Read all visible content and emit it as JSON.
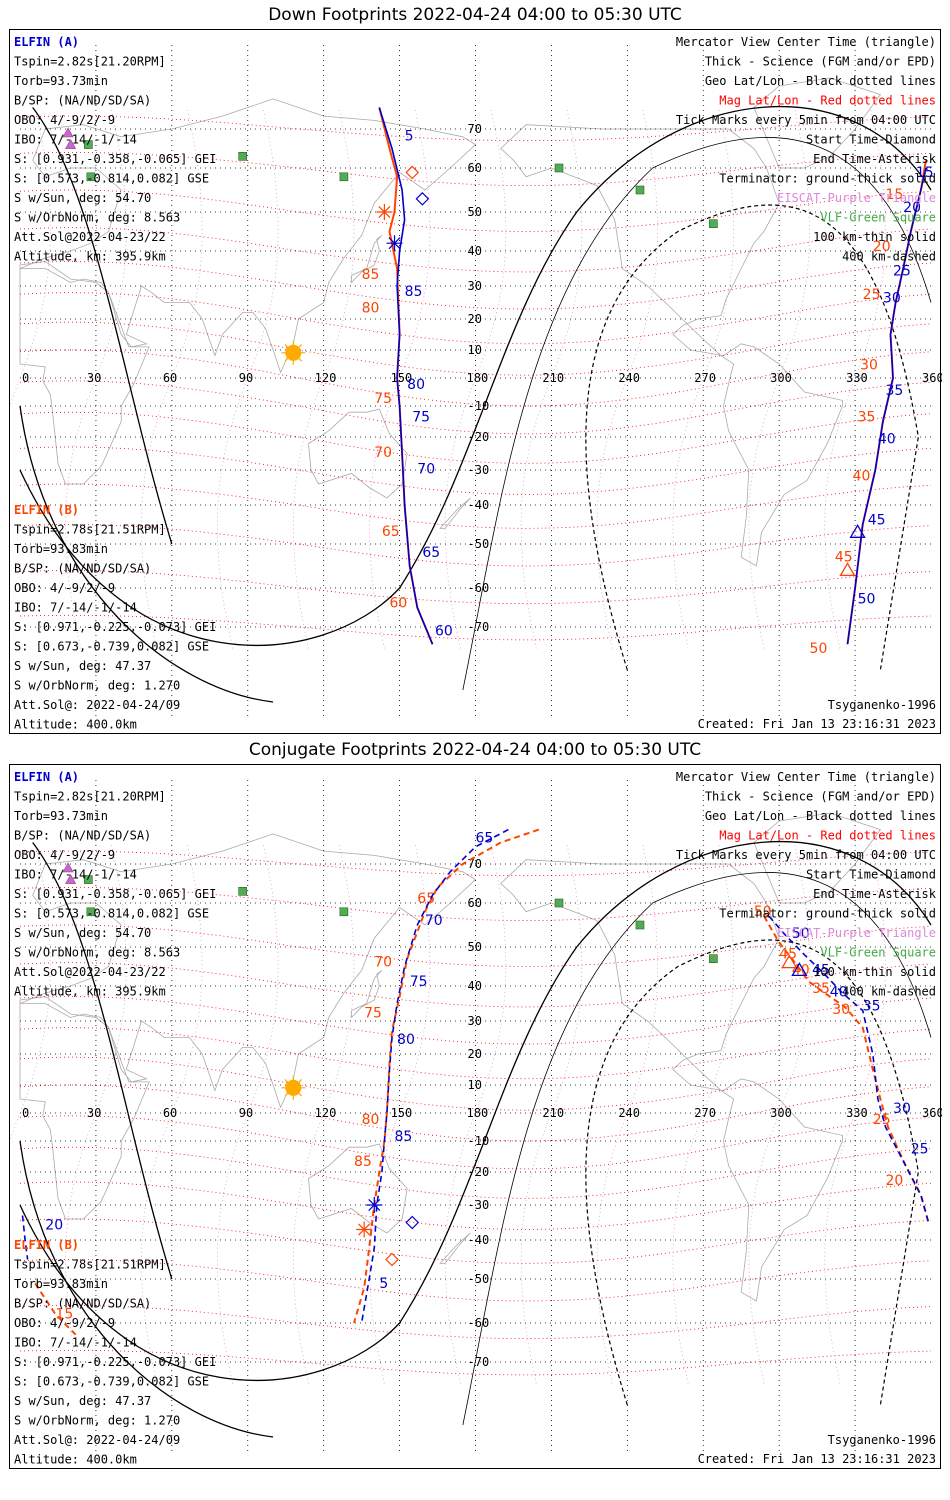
{
  "panels": [
    {
      "id": "down",
      "title": "Down Footprints 2022-04-24 04:00 to 05:30 UTC",
      "info_a": {
        "name": "ELFIN (A)",
        "lines": [
          "Tspin=2.82s[21.20RPM]",
          "Torb=93.73min",
          "B/SP: (NA/ND/SD/SA)",
          "OBO: 4/-9/2/-9",
          "IBO: 7/-14/-1/-14",
          "S: [0.931,-0.358,-0.065] GEI",
          "S: [0.573,-0.814,0.082] GSE",
          "S w/Sun, deg: 54.70",
          "S w/OrbNorm, deg: 8.563",
          "Att.Sol@2022-04-23/22",
          "Altitude, km: 395.9km"
        ]
      },
      "info_b": {
        "name": "ELFIN (B)",
        "lines": [
          "Tspin=2.78s[21.51RPM]",
          "Torb=93.83min",
          "B/SP: (NA/ND/SD/SA)",
          "OBO: 4/-9/2/-9",
          "IBO: 7/-14/-1/-14",
          "S: [0.971,-0.225,-0.073] GEI",
          "S: [0.673,-0.739,0.082] GSE",
          "S w/Sun, deg: 47.37",
          "S w/OrbNorm, deg: 1.270",
          "Att.Sol@: 2022-04-24/09",
          "Altitude: 400.0km"
        ]
      },
      "legend": [
        {
          "text": "Mercator View Center Time (triangle)",
          "color": "#000000"
        },
        {
          "text": "Thick - Science (FGM and/or EPD)",
          "color": "#000000"
        },
        {
          "text": "Geo Lat/Lon - Black dotted lines",
          "color": "#000000"
        },
        {
          "text": "Mag Lat/Lon - Red dotted lines",
          "color": "#ff0000"
        },
        {
          "text": "Tick Marks every 5min from 04:00 UTC",
          "color": "#000000"
        },
        {
          "text": "Start Time-Diamond",
          "color": "#000000"
        },
        {
          "text": "End Time-Asterisk",
          "color": "#000000"
        },
        {
          "text": "Terminator: ground-thick solid",
          "color": "#000000"
        },
        {
          "text": "EISCAT-Purple Triangle",
          "color": "#dd88dd"
        },
        {
          "text": "VLF-Green Square",
          "color": "#44aa44"
        },
        {
          "text": "100 km-thin solid",
          "color": "#000000"
        },
        {
          "text": "400 km-dashed",
          "color": "#000000"
        }
      ],
      "footer_left": "",
      "footer_right_1": "Tsyganenko-1996",
      "footer_right_2": "Created: Fri Jan 13 23:16:31 2023",
      "track_a": {
        "color": "#0000cc",
        "points": [
          [
            142,
            75
          ],
          [
            147,
            65
          ],
          [
            151,
            55
          ],
          [
            152,
            48
          ],
          [
            150,
            40
          ],
          [
            149,
            30
          ],
          [
            150,
            15
          ],
          [
            149,
            0
          ],
          [
            150,
            -10
          ],
          [
            151,
            -25
          ],
          [
            152,
            -40
          ],
          [
            154,
            -55
          ],
          [
            157,
            -65
          ],
          [
            163,
            -74
          ]
        ],
        "labels": [
          {
            "t": "5",
            "lon": 152,
            "lat": 67
          },
          {
            "t": "85",
            "lon": 152,
            "lat": 27
          },
          {
            "t": "80",
            "lon": 153,
            "lat": -4
          },
          {
            "t": "75",
            "lon": 155,
            "lat": -15
          },
          {
            "t": "70",
            "lon": 157,
            "lat": -31
          },
          {
            "t": "65",
            "lon": 159,
            "lat": -53
          },
          {
            "t": "60",
            "lon": 164,
            "lat": -72
          }
        ],
        "start": [
          159,
          53
        ],
        "end": [
          148,
          42
        ]
      },
      "track_b": {
        "color": "#ff4400",
        "points": [
          [
            142,
            75
          ],
          [
            146,
            65
          ],
          [
            149,
            58
          ],
          [
            148,
            50
          ],
          [
            146,
            45
          ],
          [
            149,
            35
          ],
          [
            150,
            15
          ],
          [
            149,
            0
          ],
          [
            150,
            -10
          ],
          [
            151,
            -25
          ],
          [
            152,
            -40
          ],
          [
            154,
            -55
          ],
          [
            157,
            -65
          ],
          [
            163,
            -74
          ]
        ],
        "labels": [
          {
            "t": "85",
            "lon": 135,
            "lat": 32
          },
          {
            "t": "80",
            "lon": 135,
            "lat": 22
          },
          {
            "t": "75",
            "lon": 140,
            "lat": -9
          },
          {
            "t": "70",
            "lon": 140,
            "lat": -26
          },
          {
            "t": "65",
            "lon": 143,
            "lat": -48
          },
          {
            "t": "60",
            "lon": 146,
            "lat": -65
          }
        ],
        "start": [
          155,
          59
        ],
        "end": [
          144,
          50
        ]
      },
      "track_a2": {
        "color": "#0000cc",
        "points": [
          [
            358,
            60
          ],
          [
            356,
            55
          ],
          [
            352,
            45
          ],
          [
            349,
            35
          ],
          [
            346,
            25
          ],
          [
            344,
            15
          ],
          [
            345,
            0
          ],
          [
            341,
            -15
          ],
          [
            338,
            -30
          ],
          [
            333,
            -45
          ],
          [
            330,
            -60
          ],
          [
            327,
            -74
          ]
        ],
        "labels": [
          {
            "t": "15",
            "lon": 354,
            "lat": 58
          },
          {
            "t": "20",
            "lon": 349,
            "lat": 50
          },
          {
            "t": "25",
            "lon": 345,
            "lat": 33
          },
          {
            "t": "30",
            "lon": 341,
            "lat": 25
          },
          {
            "t": "35",
            "lon": 342,
            "lat": -6
          },
          {
            "t": "40",
            "lon": 339,
            "lat": -22
          },
          {
            "t": "45",
            "lon": 335,
            "lat": -45
          },
          {
            "t": "50",
            "lon": 331,
            "lat": -64
          }
        ],
        "triangle": [
          331,
          -47
        ]
      },
      "track_b2": {
        "color": "#ff4400",
        "points": [
          [
            358,
            62
          ],
          [
            356,
            55
          ],
          [
            352,
            45
          ],
          [
            349,
            35
          ],
          [
            346,
            25
          ],
          [
            344,
            15
          ],
          [
            345,
            0
          ],
          [
            341,
            -15
          ],
          [
            338,
            -30
          ],
          [
            333,
            -45
          ],
          [
            330,
            -60
          ],
          [
            327,
            -74
          ]
        ],
        "labels": [
          {
            "t": "15",
            "lon": 342,
            "lat": 53
          },
          {
            "t": "20",
            "lon": 337,
            "lat": 40
          },
          {
            "t": "25",
            "lon": 333,
            "lat": 26
          },
          {
            "t": "30",
            "lon": 332,
            "lat": 3
          },
          {
            "t": "35",
            "lon": 331,
            "lat": -15
          },
          {
            "t": "40",
            "lon": 329,
            "lat": -33
          },
          {
            "t": "45",
            "lon": 322,
            "lat": -54
          },
          {
            "t": "50",
            "lon": 312,
            "lat": -76
          }
        ],
        "triangle": [
          327,
          -56
        ]
      }
    },
    {
      "id": "conjugate",
      "title": "Conjugate Footprints 2022-04-24 04:00 to 05:30 UTC",
      "info_a": {
        "name": "ELFIN (A)",
        "lines": [
          "Tspin=2.82s[21.20RPM]",
          "Torb=93.73min",
          "B/SP: (NA/ND/SD/SA)",
          "OBO: 4/-9/2/-9",
          "IBO: 7/-14/-1/-14",
          "S: [0.931,-0.358,-0.065] GEI",
          "S: [0.573,-0.814,0.082] GSE",
          "S w/Sun, deg: 54.70",
          "S w/OrbNorm, deg: 8.563",
          "Att.Sol@2022-04-23/22",
          "Altitude, km: 395.9km"
        ]
      },
      "info_b": {
        "name": "ELFIN (B)",
        "lines": [
          "Tspin=2.78s[21.51RPM]",
          "Torb=93.83min",
          "B/SP: (NA/ND/SD/SA)",
          "OBO: 4/-9/2/-9",
          "IBO: 7/-14/-1/-14",
          "S: [0.971,-0.225,-0.073] GEI",
          "S: [0.673,-0.739,0.082] GSE",
          "S w/Sun, deg: 47.37",
          "S w/OrbNorm, deg: 1.270",
          "Att.Sol@: 2022-04-24/09",
          "Altitude: 400.0km"
        ]
      },
      "legend": [
        {
          "text": "Mercator View Center Time (triangle)",
          "color": "#000000"
        },
        {
          "text": "Thick - Science (FGM and/or EPD)",
          "color": "#000000"
        },
        {
          "text": "Geo Lat/Lon - Black dotted lines",
          "color": "#000000"
        },
        {
          "text": "Mag Lat/Lon - Red dotted lines",
          "color": "#ff0000"
        },
        {
          "text": "Tick Marks every 5min from 04:00 UTC",
          "color": "#000000"
        },
        {
          "text": "Start Time-Diamond",
          "color": "#000000"
        },
        {
          "text": "End Time-Asterisk",
          "color": "#000000"
        },
        {
          "text": "Terminator: ground-thick solid",
          "color": "#000000"
        },
        {
          "text": "EISCAT-Purple Triangle",
          "color": "#dd88dd"
        },
        {
          "text": "VLF-Green Square",
          "color": "#44aa44"
        },
        {
          "text": "100 km-thin solid",
          "color": "#000000"
        },
        {
          "text": "400 km-dashed",
          "color": "#000000"
        }
      ],
      "footer_right_1": "Tsyganenko-1996",
      "footer_right_2": "Created: Fri Jan 13 23:16:31 2023",
      "track_a": {
        "color": "#0000cc",
        "points": [
          [
            193,
            78
          ],
          [
            180,
            74
          ],
          [
            170,
            68
          ],
          [
            163,
            62
          ],
          [
            157,
            55
          ],
          [
            152,
            45
          ],
          [
            149,
            35
          ],
          [
            147,
            25
          ],
          [
            146,
            15
          ],
          [
            145,
            0
          ],
          [
            144,
            -10
          ],
          [
            143,
            -20
          ],
          [
            141,
            -30
          ],
          [
            140,
            -42
          ],
          [
            138,
            -50
          ],
          [
            135,
            -60
          ]
        ],
        "labels": [
          {
            "t": "65",
            "lon": 180,
            "lat": 75
          },
          {
            "t": "70",
            "lon": 160,
            "lat": 55
          },
          {
            "t": "75",
            "lon": 154,
            "lat": 40
          },
          {
            "t": "80",
            "lon": 149,
            "lat": 23
          },
          {
            "t": "85",
            "lon": 148,
            "lat": -10
          },
          {
            "t": "5",
            "lon": 142,
            "lat": -52
          }
        ],
        "start": [
          155,
          -35
        ],
        "end": [
          140,
          -30
        ]
      },
      "track_b": {
        "color": "#ff4400",
        "points": [
          [
            205,
            78
          ],
          [
            190,
            75
          ],
          [
            175,
            70
          ],
          [
            165,
            64
          ],
          [
            160,
            58
          ],
          [
            153,
            47
          ],
          [
            150,
            37
          ],
          [
            147,
            27
          ],
          [
            146,
            17
          ],
          [
            145,
            0
          ],
          [
            144,
            -10
          ],
          [
            142,
            -20
          ],
          [
            140,
            -30
          ],
          [
            138,
            -42
          ],
          [
            136,
            -52
          ],
          [
            132,
            -60
          ]
        ],
        "labels": [
          {
            "t": "65",
            "lon": 157,
            "lat": 60
          },
          {
            "t": "70",
            "lon": 140,
            "lat": 45
          },
          {
            "t": "75",
            "lon": 136,
            "lat": 31
          },
          {
            "t": "80",
            "lon": 135,
            "lat": -4
          },
          {
            "t": "85",
            "lon": 132,
            "lat": -18
          }
        ],
        "start": [
          147,
          -45
        ],
        "end": [
          136,
          -37
        ]
      },
      "track_a2": {
        "color": "#0000cc",
        "points": [
          [
            296,
            57
          ],
          [
            302,
            53
          ],
          [
            310,
            48
          ],
          [
            318,
            43
          ],
          [
            325,
            38
          ],
          [
            333,
            33
          ],
          [
            337,
            20
          ],
          [
            339,
            5
          ],
          [
            342,
            -5
          ],
          [
            350,
            -18
          ],
          [
            356,
            -27
          ],
          [
            359,
            -35
          ]
        ],
        "labels": [
          {
            "t": "50",
            "lon": 305,
            "lat": 52
          },
          {
            "t": "45",
            "lon": 313,
            "lat": 43
          },
          {
            "t": "40",
            "lon": 320,
            "lat": 37
          },
          {
            "t": "35",
            "lon": 333,
            "lat": 33
          },
          {
            "t": "30",
            "lon": 345,
            "lat": 0
          },
          {
            "t": "25",
            "lon": 352,
            "lat": -14
          }
        ],
        "triangle": [
          308,
          44
        ]
      },
      "track_b2": {
        "color": "#ff4400",
        "points": [
          [
            294,
            57
          ],
          [
            300,
            51
          ],
          [
            305,
            47
          ],
          [
            312,
            41
          ],
          [
            318,
            38
          ],
          [
            326,
            34
          ],
          [
            333,
            28
          ],
          [
            337,
            15
          ],
          [
            340,
            5
          ],
          [
            343,
            -5
          ],
          [
            350,
            -18
          ],
          [
            356,
            -27
          ],
          [
            359,
            -35
          ]
        ],
        "labels": [
          {
            "t": "50",
            "lon": 290,
            "lat": 57
          },
          {
            "t": "45",
            "lon": 300,
            "lat": 47
          },
          {
            "t": "40",
            "lon": 305,
            "lat": 43
          },
          {
            "t": "35",
            "lon": 313,
            "lat": 38
          },
          {
            "t": "30",
            "lon": 321,
            "lat": 32
          },
          {
            "t": "25",
            "lon": 337,
            "lat": -4
          },
          {
            "t": "20",
            "lon": 342,
            "lat": -24
          }
        ],
        "triangle": [
          304,
          46
        ],
        "extra_left_a": {
          "points": [
            [
              1,
              -33
            ],
            [
              2,
              -40
            ],
            [
              3,
              -45
            ]
          ],
          "labels": [
            {
              "t": "20",
              "lon": 10,
              "lat": -37
            }
          ]
        },
        "extra_left_b": {
          "points": [
            [
              6,
              -51
            ],
            [
              14,
              -58
            ],
            [
              22,
              -63
            ]
          ],
          "labels": [
            {
              "t": "15",
              "lon": 14,
              "lat": -59
            }
          ]
        }
      }
    }
  ],
  "map": {
    "lon_ticks": [
      "0",
      "30",
      "60",
      "90",
      "120",
      "150",
      "180",
      "210",
      "240",
      "270",
      "300",
      "330",
      "360"
    ],
    "lat_ticks": [
      "70",
      "60",
      "50",
      "40",
      "30",
      "20",
      "10",
      "-10",
      "-20",
      "-30",
      "-40",
      "-50",
      "-60",
      "-70"
    ],
    "lat_values": [
      70,
      60,
      50,
      40,
      30,
      20,
      10,
      -10,
      -20,
      -30,
      -40,
      -50,
      -60,
      -70
    ],
    "sun": [
      108,
      9
    ],
    "vlf_sites": [
      [
        88,
        63
      ],
      [
        27,
        66
      ],
      [
        28,
        58
      ],
      [
        128,
        58
      ],
      [
        213,
        60
      ],
      [
        245,
        55
      ],
      [
        274,
        47
      ]
    ],
    "eiscat": [
      [
        19,
        69
      ],
      [
        20,
        66
      ]
    ],
    "colors": {
      "geo_grid": "#000000",
      "mag_grid": "#ff0000",
      "eiscat": "#cc66cc",
      "vlf": "#55aa55",
      "sun": "#ffaa00",
      "land": "#aaaaaa"
    }
  }
}
